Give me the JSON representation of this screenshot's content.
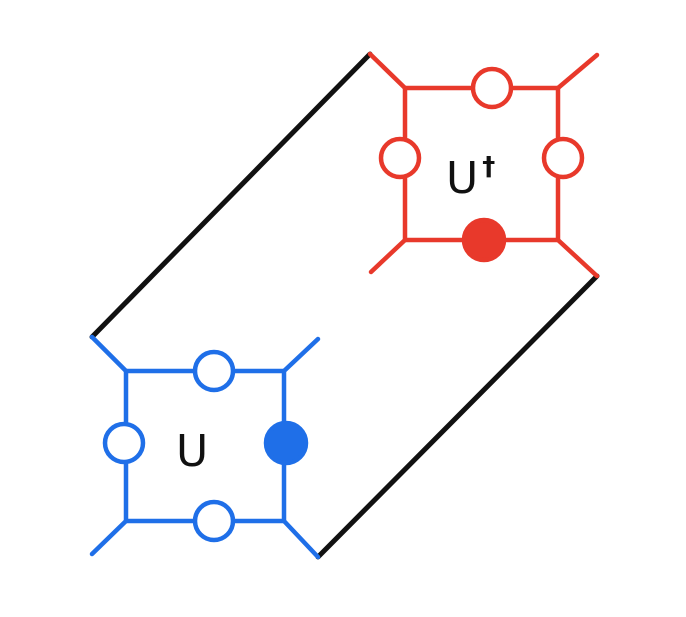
{
  "diagram": {
    "connector_color": "#111111",
    "tensor_u": {
      "label": "U",
      "color": "#1f6fe8"
    },
    "tensor_u_dagger": {
      "label": "U",
      "superscript": "†",
      "color": "#e8392b"
    }
  }
}
